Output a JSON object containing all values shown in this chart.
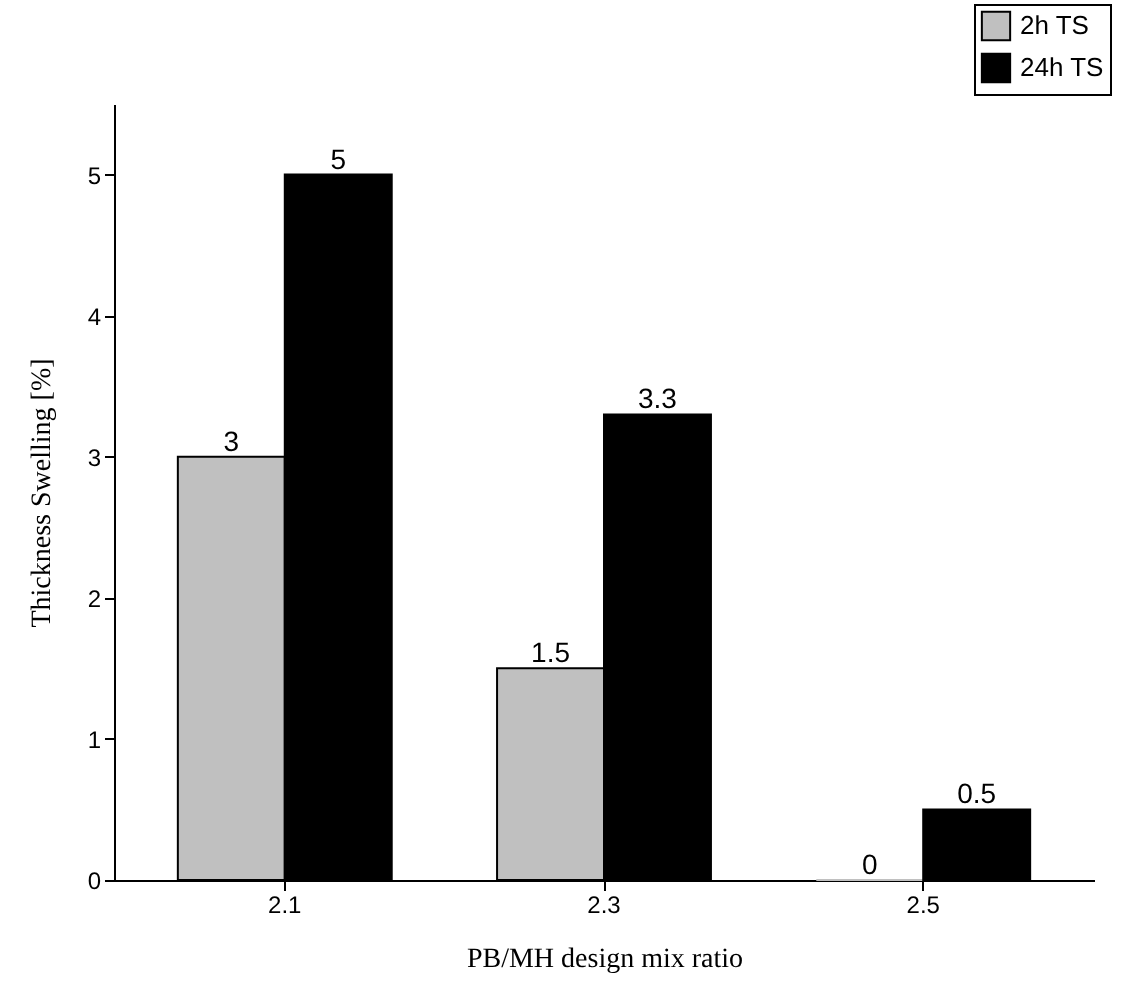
{
  "chart_data": {
    "type": "bar",
    "xlabel": "PB/MH design mix ratio",
    "ylabel": "Thickness Swelling [%]",
    "categories": [
      "2.1",
      "2.3",
      "2.5"
    ],
    "series": [
      {
        "name": "2h TS",
        "color": "#c0c0c0",
        "values": [
          3,
          1.5,
          0
        ]
      },
      {
        "name": "24h TS",
        "color": "#000000",
        "values": [
          5,
          3.3,
          0.5
        ]
      }
    ],
    "ylim": [
      0,
      5.5
    ],
    "yticks": [
      0,
      1,
      2,
      3,
      4,
      5
    ],
    "data_labels": true,
    "legend": "top right"
  }
}
